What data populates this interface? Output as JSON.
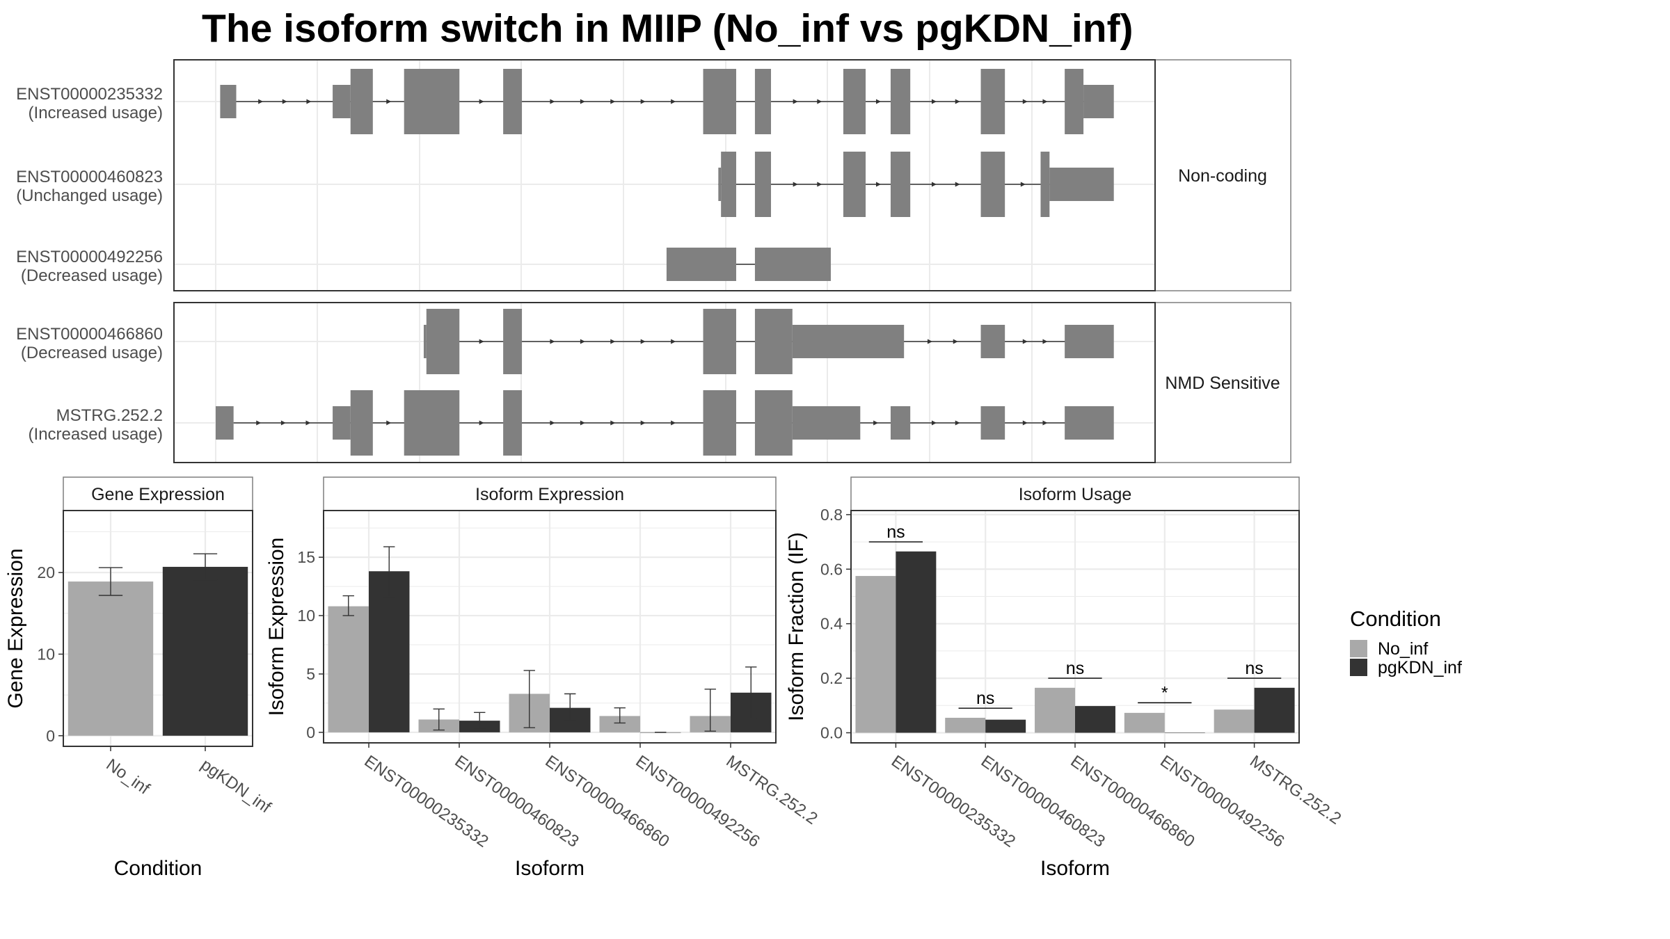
{
  "title": "The isoform switch in MIIP (No_inf vs pgKDN_inf)",
  "colors": {
    "no_inf": "#a9a9a9",
    "pgkdn_inf": "#333333",
    "exon": "#808080",
    "intron": "#333333",
    "grid": "#ebebeb",
    "panel_border": "#333333",
    "strip_border": "#7f7f7f",
    "strip_fill": "#ffffff",
    "axis_text": "#4d4d4d"
  },
  "transcript_structure": {
    "coord_range": [
      0,
      1000
    ],
    "groups": [
      {
        "label": "Non-coding",
        "transcripts": [
          {
            "id": "ENST00000235332",
            "usage": "(Increased usage)",
            "intron_range": [
              23,
              981
            ],
            "exons": [
              {
                "range": [
                  5,
                  23
                ],
                "coding": false
              },
              {
                "range": [
                  131,
                  151
                ],
                "coding": false
              },
              {
                "range": [
                  151,
                  176
                ],
                "coding": true
              },
              {
                "range": [
                  211,
                  273
                ],
                "coding": true
              },
              {
                "range": [
                  322,
                  343
                ],
                "coding": true
              },
              {
                "range": [
                  546,
                  583
                ],
                "coding": true
              },
              {
                "range": [
                  604,
                  622
                ],
                "coding": true
              },
              {
                "range": [
                  703,
                  728
                ],
                "coding": true
              },
              {
                "range": [
                  756,
                  778
                ],
                "coding": true
              },
              {
                "range": [
                  857,
                  884
                ],
                "coding": true
              },
              {
                "range": [
                  951,
                  972
                ],
                "coding": true
              },
              {
                "range": [
                  972,
                  1006
                ],
                "coding": false
              }
            ]
          },
          {
            "id": "ENST00000460823",
            "usage": "(Unchanged usage)",
            "intron_range": [
              563,
              934
            ],
            "exons": [
              {
                "range": [
                  563,
                  566
                ],
                "coding": false
              },
              {
                "range": [
                  566,
                  583
                ],
                "coding": true
              },
              {
                "range": [
                  604,
                  622
                ],
                "coding": true
              },
              {
                "range": [
                  703,
                  728
                ],
                "coding": true
              },
              {
                "range": [
                  756,
                  778
                ],
                "coding": true
              },
              {
                "range": [
                  857,
                  884
                ],
                "coding": true
              },
              {
                "range": [
                  924,
                  934
                ],
                "coding": true
              },
              {
                "range": [
                  934,
                  1006
                ],
                "coding": false
              }
            ]
          },
          {
            "id": "ENST00000492256",
            "usage": "(Decreased usage)",
            "intron_range": [
              583,
              604
            ],
            "exons": [
              {
                "range": [
                  505,
                  583
                ],
                "coding": false
              },
              {
                "range": [
                  604,
                  689
                ],
                "coding": false
              }
            ]
          }
        ]
      },
      {
        "label": "NMD Sensitive",
        "transcripts": [
          {
            "id": "ENST00000466860",
            "usage": "(Decreased usage)",
            "intron_range": [
              236,
              981
            ],
            "exons": [
              {
                "range": [
                  233,
                  236
                ],
                "coding": false
              },
              {
                "range": [
                  236,
                  273
                ],
                "coding": true
              },
              {
                "range": [
                  322,
                  343
                ],
                "coding": true
              },
              {
                "range": [
                  546,
                  583
                ],
                "coding": true
              },
              {
                "range": [
                  604,
                  646
                ],
                "coding": true
              },
              {
                "range": [
                  646,
                  771
                ],
                "coding": false
              },
              {
                "range": [
                  857,
                  884
                ],
                "coding": false
              },
              {
                "range": [
                  951,
                  1006
                ],
                "coding": false
              }
            ]
          },
          {
            "id": "MSTRG.252.2",
            "usage": "(Increased usage)",
            "intron_range": [
              20,
              981
            ],
            "exons": [
              {
                "range": [
                  0,
                  20
                ],
                "coding": false
              },
              {
                "range": [
                  131,
                  151
                ],
                "coding": false
              },
              {
                "range": [
                  151,
                  176
                ],
                "coding": true
              },
              {
                "range": [
                  211,
                  273
                ],
                "coding": true
              },
              {
                "range": [
                  322,
                  343
                ],
                "coding": true
              },
              {
                "range": [
                  546,
                  583
                ],
                "coding": true
              },
              {
                "range": [
                  604,
                  646
                ],
                "coding": true
              },
              {
                "range": [
                  646,
                  722
                ],
                "coding": false
              },
              {
                "range": [
                  756,
                  778
                ],
                "coding": false
              },
              {
                "range": [
                  857,
                  884
                ],
                "coding": false
              },
              {
                "range": [
                  951,
                  1006
                ],
                "coding": false
              }
            ]
          }
        ]
      }
    ]
  },
  "legend": {
    "title": "Condition",
    "items": [
      "No_inf",
      "pgKDN_inf"
    ]
  },
  "chart_data": [
    {
      "type": "bar",
      "panel_label": "Gene Expression",
      "xlabel": "Condition",
      "ylabel": "Gene Expression",
      "categories": [
        "No_inf",
        "pgKDN_inf"
      ],
      "values": [
        18.9,
        20.7
      ],
      "errors": [
        [
          17.2,
          20.6
        ],
        [
          19.1,
          22.3
        ]
      ],
      "ylim": [
        -1.3,
        27.6
      ],
      "yticks": [
        0,
        10,
        20
      ],
      "grid": true
    },
    {
      "type": "bar",
      "panel_label": "Isoform Expression",
      "xlabel": "Isoform",
      "ylabel": "Isoform Expression",
      "categories": [
        "ENST00000235332",
        "ENST00000460823",
        "ENST00000466860",
        "ENST00000492256",
        "MSTRG.252.2"
      ],
      "series": [
        {
          "name": "No_inf",
          "values": [
            10.8,
            1.1,
            3.3,
            1.4,
            1.4
          ],
          "errors": [
            [
              10.0,
              11.7
            ],
            [
              0.2,
              2.0
            ],
            [
              0.4,
              5.3
            ],
            [
              0.8,
              2.1
            ],
            [
              0.1,
              3.7
            ]
          ]
        },
        {
          "name": "pgKDN_inf",
          "values": [
            13.8,
            1.0,
            2.1,
            0.0,
            3.4
          ],
          "errors": [
            [
              11.6,
              15.9
            ],
            [
              0.3,
              1.7
            ],
            [
              1.0,
              3.3
            ],
            [
              0.0,
              0.0
            ],
            [
              1.2,
              5.6
            ]
          ]
        }
      ],
      "ylim": [
        -0.9,
        19.0
      ],
      "yticks": [
        0,
        5,
        10,
        15
      ],
      "grid": true
    },
    {
      "type": "bar",
      "panel_label": "Isoform Usage",
      "xlabel": "Isoform",
      "ylabel": "Isoform Fraction (IF)",
      "categories": [
        "ENST00000235332",
        "ENST00000460823",
        "ENST00000466860",
        "ENST00000492256",
        "MSTRG.252.2"
      ],
      "series": [
        {
          "name": "No_inf",
          "values": [
            0.575,
            0.055,
            0.165,
            0.073,
            0.085
          ]
        },
        {
          "name": "pgKDN_inf",
          "values": [
            0.665,
            0.048,
            0.098,
            0.0,
            0.165
          ]
        }
      ],
      "significance": [
        {
          "category": "ENST00000235332",
          "label": "ns",
          "y": 0.7
        },
        {
          "category": "ENST00000460823",
          "label": "ns",
          "y": 0.09
        },
        {
          "category": "ENST00000466860",
          "label": "ns",
          "y": 0.2
        },
        {
          "category": "ENST00000492256",
          "label": "*",
          "y": 0.11
        },
        {
          "category": "MSTRG.252.2",
          "label": "ns",
          "y": 0.2
        }
      ],
      "ylim": [
        -0.037,
        0.815
      ],
      "yticks": [
        0.0,
        0.2,
        0.4,
        0.6,
        0.8
      ],
      "ytick_labels": [
        "0.0",
        "0.2",
        "0.4",
        "0.6",
        "0.8"
      ],
      "grid": true
    }
  ]
}
